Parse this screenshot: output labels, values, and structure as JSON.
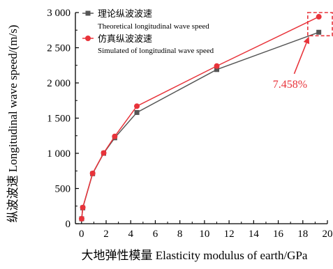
{
  "chart_data": {
    "type": "line",
    "xlabel": "大地弹性模量 Elasticity modulus of earth/GPa",
    "ylabel": "纵波波速 Longitudinal wave speed/(m/s)",
    "xlim": [
      -0.5,
      20
    ],
    "ylim": [
      0,
      3000
    ],
    "xticks": [
      0,
      2,
      4,
      6,
      8,
      10,
      12,
      14,
      16,
      18,
      20
    ],
    "xtick_labels": [
      "0",
      "2",
      "4",
      "6",
      "8",
      "10",
      "12",
      "14",
      "16",
      "18",
      "20"
    ],
    "yticks": [
      0,
      500,
      1000,
      1500,
      2000,
      2500,
      3000
    ],
    "ytick_labels": [
      "0",
      "500",
      "1 000",
      "1 500",
      "2 000",
      "2 500",
      "3 000"
    ],
    "grid": false,
    "legend_position": "top-left",
    "series": [
      {
        "name": "理论纵波波速",
        "name_en": "Theoretical longitudinal wave speed",
        "color": "#555555",
        "marker": "square",
        "x": [
          0.01,
          0.1,
          0.9,
          1.8,
          2.7,
          4.5,
          11.0,
          19.3
        ],
        "y": [
          70,
          225,
          710,
          1000,
          1220,
          1580,
          2190,
          2720
        ]
      },
      {
        "name": "仿真纵波波速",
        "name_en": "Simulated of longitudinal wave speed",
        "color": "#e8333a",
        "marker": "circle",
        "x": [
          0.01,
          0.1,
          0.9,
          1.8,
          2.7,
          4.5,
          11.0,
          19.3
        ],
        "y": [
          70,
          230,
          715,
          1005,
          1240,
          1670,
          2240,
          2940
        ]
      }
    ],
    "annotations": [
      {
        "text": "7.458%",
        "color": "#e8333a",
        "box_x_range": [
          18.4,
          20.4
        ],
        "box_y_range": [
          2670,
          3000
        ],
        "arrow_text_at": [
          17.3,
          2130
        ],
        "arrow_point_at": [
          18.5,
          2670
        ]
      }
    ]
  }
}
